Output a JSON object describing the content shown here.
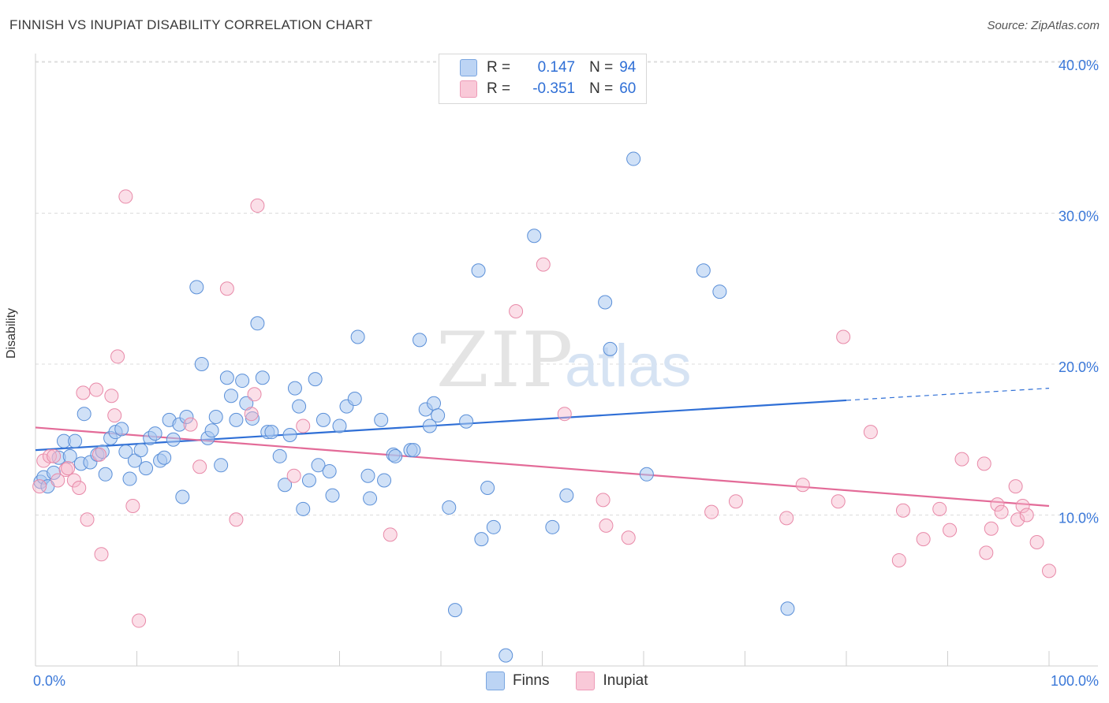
{
  "title": "FINNISH VS INUPIAT DISABILITY CORRELATION CHART",
  "source": "Source: ZipAtlas.com",
  "watermark": {
    "zip": "ZIP",
    "atlas": "atlas"
  },
  "colors": {
    "finns_fill": "#a9c8f0",
    "finns_stroke": "#5a8fd8",
    "finns_line": "#2f6fd6",
    "inupiat_fill": "#f7b8cb",
    "inupiat_stroke": "#e889a8",
    "inupiat_line": "#e36b98",
    "grid": "#dcdcdc",
    "tick_text": "#3b78d8"
  },
  "legend": {
    "r_label": "R =",
    "n_label": "N =",
    "finns": {
      "r": "0.147",
      "n": "94"
    },
    "inupiat": {
      "r": "-0.351",
      "n": "60"
    }
  },
  "bottom_legend": {
    "finns": "Finns",
    "inupiat": "Inupiat"
  },
  "chart_data": {
    "type": "scatter",
    "title": "FINNISH VS INUPIAT DISABILITY CORRELATION CHART",
    "xlabel": "",
    "ylabel": "Disability",
    "xlim": [
      0,
      100
    ],
    "ylim": [
      0,
      42
    ],
    "x_ticks": [
      "0.0%",
      "100.0%"
    ],
    "y_ticks": [
      {
        "value": 10,
        "label": "10.0%"
      },
      {
        "value": 20,
        "label": "20.0%"
      },
      {
        "value": 30,
        "label": "30.0%"
      },
      {
        "value": 40,
        "label": "40.0%"
      }
    ],
    "grid": true,
    "legend_position": "top-center",
    "series": [
      {
        "name": "Finns",
        "r": 0.147,
        "n": 94,
        "trend": {
          "x0": 0,
          "y0": 14.3,
          "x1": 80,
          "y1": 17.6,
          "dashed_to_x": 100,
          "dashed_to_y": 18.4
        },
        "points": [
          [
            0.5,
            12.2
          ],
          [
            0.8,
            12.5
          ],
          [
            1.2,
            11.9
          ],
          [
            1.8,
            12.8
          ],
          [
            2.3,
            13.8
          ],
          [
            2.8,
            14.9
          ],
          [
            3.4,
            13.9
          ],
          [
            3.9,
            14.9
          ],
          [
            4.5,
            13.4
          ],
          [
            4.8,
            16.7
          ],
          [
            5.4,
            13.5
          ],
          [
            6.1,
            14.0
          ],
          [
            6.6,
            14.2
          ],
          [
            6.9,
            12.7
          ],
          [
            7.4,
            15.1
          ],
          [
            7.9,
            15.5
          ],
          [
            8.5,
            15.7
          ],
          [
            8.9,
            14.2
          ],
          [
            9.3,
            12.4
          ],
          [
            9.8,
            13.6
          ],
          [
            10.4,
            14.3
          ],
          [
            10.9,
            13.1
          ],
          [
            11.3,
            15.1
          ],
          [
            11.8,
            15.4
          ],
          [
            12.3,
            13.6
          ],
          [
            12.7,
            13.8
          ],
          [
            13.2,
            16.3
          ],
          [
            13.6,
            15.0
          ],
          [
            14.2,
            16.0
          ],
          [
            14.5,
            11.2
          ],
          [
            14.9,
            16.5
          ],
          [
            15.9,
            25.1
          ],
          [
            16.4,
            20.0
          ],
          [
            17.0,
            15.1
          ],
          [
            17.4,
            15.6
          ],
          [
            17.8,
            16.5
          ],
          [
            18.3,
            13.3
          ],
          [
            18.9,
            19.1
          ],
          [
            19.3,
            17.9
          ],
          [
            19.8,
            16.3
          ],
          [
            20.4,
            18.9
          ],
          [
            20.8,
            17.4
          ],
          [
            21.4,
            16.4
          ],
          [
            21.9,
            22.7
          ],
          [
            22.4,
            19.1
          ],
          [
            22.9,
            15.5
          ],
          [
            23.3,
            15.5
          ],
          [
            24.1,
            13.9
          ],
          [
            24.6,
            12.0
          ],
          [
            25.1,
            15.3
          ],
          [
            25.6,
            18.4
          ],
          [
            26.0,
            17.2
          ],
          [
            26.4,
            10.4
          ],
          [
            27.0,
            12.3
          ],
          [
            27.6,
            19.0
          ],
          [
            27.9,
            13.3
          ],
          [
            28.4,
            16.3
          ],
          [
            29.0,
            12.9
          ],
          [
            29.3,
            11.3
          ],
          [
            30.0,
            15.9
          ],
          [
            30.7,
            17.2
          ],
          [
            31.5,
            17.7
          ],
          [
            31.8,
            21.8
          ],
          [
            32.8,
            12.6
          ],
          [
            33.0,
            11.1
          ],
          [
            34.1,
            16.3
          ],
          [
            34.4,
            12.3
          ],
          [
            35.3,
            14.0
          ],
          [
            35.5,
            13.9
          ],
          [
            37.0,
            14.3
          ],
          [
            37.3,
            14.3
          ],
          [
            37.9,
            21.6
          ],
          [
            38.5,
            17.0
          ],
          [
            38.9,
            15.9
          ],
          [
            39.3,
            17.4
          ],
          [
            39.7,
            16.6
          ],
          [
            40.8,
            10.5
          ],
          [
            41.4,
            3.7
          ],
          [
            42.5,
            16.2
          ],
          [
            43.7,
            26.2
          ],
          [
            44.0,
            8.4
          ],
          [
            44.6,
            11.8
          ],
          [
            45.2,
            9.2
          ],
          [
            46.4,
            0.7
          ],
          [
            49.2,
            28.5
          ],
          [
            51.0,
            9.2
          ],
          [
            52.4,
            11.3
          ],
          [
            56.2,
            24.1
          ],
          [
            56.7,
            21.0
          ],
          [
            59.0,
            33.6
          ],
          [
            60.3,
            12.7
          ],
          [
            65.9,
            26.2
          ],
          [
            67.5,
            24.8
          ],
          [
            74.2,
            3.8
          ]
        ]
      },
      {
        "name": "Inupiat",
        "r": -0.351,
        "n": 60,
        "trend": {
          "x0": 0,
          "y0": 15.8,
          "x1": 100,
          "y1": 10.6
        },
        "points": [
          [
            0.4,
            11.9
          ],
          [
            0.8,
            13.6
          ],
          [
            1.4,
            13.9
          ],
          [
            1.8,
            13.9
          ],
          [
            2.2,
            12.3
          ],
          [
            3.0,
            13.0
          ],
          [
            3.2,
            13.1
          ],
          [
            3.8,
            12.3
          ],
          [
            4.3,
            11.8
          ],
          [
            4.7,
            18.1
          ],
          [
            5.1,
            9.7
          ],
          [
            6.0,
            18.3
          ],
          [
            6.3,
            14.0
          ],
          [
            6.5,
            7.4
          ],
          [
            7.5,
            17.9
          ],
          [
            7.8,
            16.6
          ],
          [
            8.1,
            20.5
          ],
          [
            8.9,
            31.1
          ],
          [
            9.6,
            10.6
          ],
          [
            10.2,
            3.0
          ],
          [
            15.3,
            16.0
          ],
          [
            16.2,
            13.2
          ],
          [
            18.9,
            25.0
          ],
          [
            19.8,
            9.7
          ],
          [
            21.3,
            16.7
          ],
          [
            21.6,
            18.0
          ],
          [
            21.9,
            30.5
          ],
          [
            25.5,
            12.6
          ],
          [
            26.4,
            15.9
          ],
          [
            35.0,
            8.7
          ],
          [
            47.4,
            23.5
          ],
          [
            50.1,
            26.6
          ],
          [
            52.2,
            16.7
          ],
          [
            56.0,
            11.0
          ],
          [
            56.3,
            9.3
          ],
          [
            58.5,
            8.5
          ],
          [
            66.7,
            10.2
          ],
          [
            69.1,
            10.9
          ],
          [
            74.1,
            9.8
          ],
          [
            75.7,
            12.0
          ],
          [
            79.2,
            10.9
          ],
          [
            79.7,
            21.8
          ],
          [
            82.4,
            15.5
          ],
          [
            85.2,
            7.0
          ],
          [
            85.6,
            10.3
          ],
          [
            87.6,
            8.4
          ],
          [
            89.2,
            10.4
          ],
          [
            90.2,
            9.0
          ],
          [
            91.4,
            13.7
          ],
          [
            93.6,
            13.4
          ],
          [
            93.8,
            7.5
          ],
          [
            94.3,
            9.1
          ],
          [
            94.9,
            10.7
          ],
          [
            95.3,
            10.2
          ],
          [
            96.7,
            11.9
          ],
          [
            96.9,
            9.7
          ],
          [
            97.4,
            10.6
          ],
          [
            97.8,
            10.0
          ],
          [
            98.8,
            8.2
          ],
          [
            100.0,
            6.3
          ]
        ]
      }
    ]
  }
}
